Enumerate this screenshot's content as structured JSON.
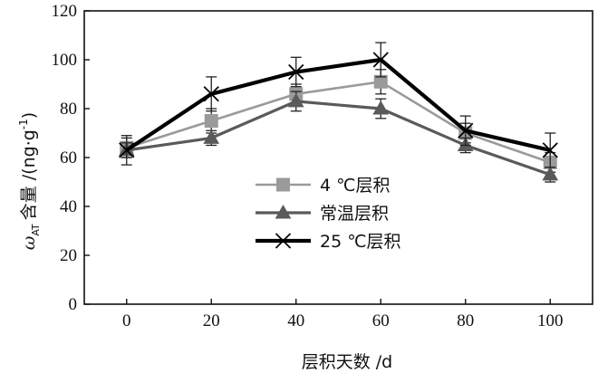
{
  "chart_data": {
    "type": "line",
    "title": "",
    "xlabel": "层积天数 /d",
    "ylabel": "ω_AT 含量 /(ng·g⁻¹)",
    "ylabel_parts": {
      "symbol": "ω",
      "subscript": "AT",
      "name": "含量",
      "unit": " /(ng·g",
      "unit_exp": "-1",
      "unit_close": ")"
    },
    "x": [
      0,
      20,
      40,
      60,
      80,
      100
    ],
    "xticks": [
      "0",
      "20",
      "40",
      "60",
      "80",
      "100"
    ],
    "xlim": [
      -10,
      110
    ],
    "ylim": [
      0,
      120
    ],
    "yticks": [
      "0",
      "20",
      "40",
      "60",
      "80",
      "100",
      "120"
    ],
    "grid": false,
    "legend_position": "center-left",
    "series": [
      {
        "name": "4 ℃层积",
        "marker": "square",
        "color": "#9a9a9a",
        "values": [
          64,
          75,
          86,
          91,
          70,
          58
        ],
        "errors": [
          4,
          5,
          4,
          5,
          4,
          4
        ]
      },
      {
        "name": "常温层积",
        "marker": "triangle",
        "color": "#5a5a5a",
        "values": [
          63,
          68,
          83,
          80,
          65,
          53
        ],
        "errors": [
          3,
          3,
          4,
          4,
          3,
          3
        ]
      },
      {
        "name": "25 ℃层积",
        "marker": "x",
        "color": "#000000",
        "values": [
          63,
          86,
          95,
          100,
          71,
          63
        ],
        "errors": [
          6,
          7,
          6,
          7,
          6,
          7
        ]
      }
    ]
  }
}
